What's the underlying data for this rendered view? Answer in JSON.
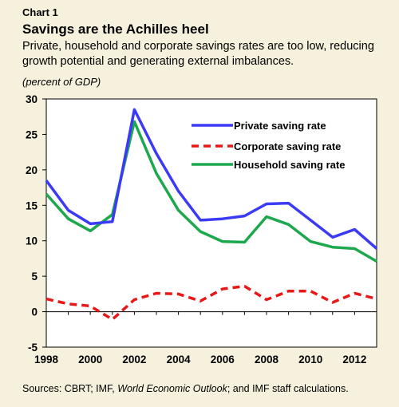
{
  "header": {
    "chart_number": "Chart 1",
    "title": "Savings are the Achilles heel",
    "subtitle": "Private, household and corporate savings rates are too low, reducing growth potential and generating external imbalances.",
    "units": "(percent of GDP)"
  },
  "source": {
    "prefix": "Sources: CBRT; IMF, ",
    "italic": "World Economic Outlook",
    "suffix": "; and IMF staff calculations."
  },
  "chart_data": {
    "type": "line",
    "x": [
      1998,
      1999,
      2000,
      2001,
      2002,
      2003,
      2004,
      2005,
      2006,
      2007,
      2008,
      2009,
      2010,
      2011,
      2012,
      2013
    ],
    "x_ticks": [
      "1998",
      "2000",
      "2002",
      "2004",
      "2006",
      "2008",
      "2010",
      "2012"
    ],
    "y_ticks": [
      "30",
      "25",
      "20",
      "15",
      "10",
      "5",
      "0",
      "-5"
    ],
    "ylim": [
      -5,
      30
    ],
    "xlim": [
      1998,
      2013
    ],
    "grid": false,
    "legend_position": "top-right",
    "series": [
      {
        "name": "Private saving rate",
        "color": "#3b3bf5",
        "dash": "solid",
        "values": [
          18.5,
          14.3,
          12.4,
          12.7,
          28.5,
          22.3,
          17.0,
          12.9,
          13.1,
          13.5,
          15.2,
          15.3,
          12.9,
          10.5,
          11.6,
          8.9
        ]
      },
      {
        "name": "Corporate saving rate",
        "color": "#e81818",
        "dash": "dashed",
        "values": [
          1.8,
          1.1,
          0.8,
          -1.1,
          1.7,
          2.6,
          2.5,
          1.5,
          3.2,
          3.6,
          1.7,
          2.9,
          2.9,
          1.3,
          2.6,
          1.8
        ]
      },
      {
        "name": "Household saving rate",
        "color": "#1ea84e",
        "dash": "solid",
        "values": [
          16.6,
          13.1,
          11.4,
          13.7,
          26.8,
          19.5,
          14.3,
          11.3,
          9.9,
          9.8,
          13.4,
          12.3,
          9.9,
          9.1,
          8.9,
          7.1
        ]
      }
    ]
  }
}
